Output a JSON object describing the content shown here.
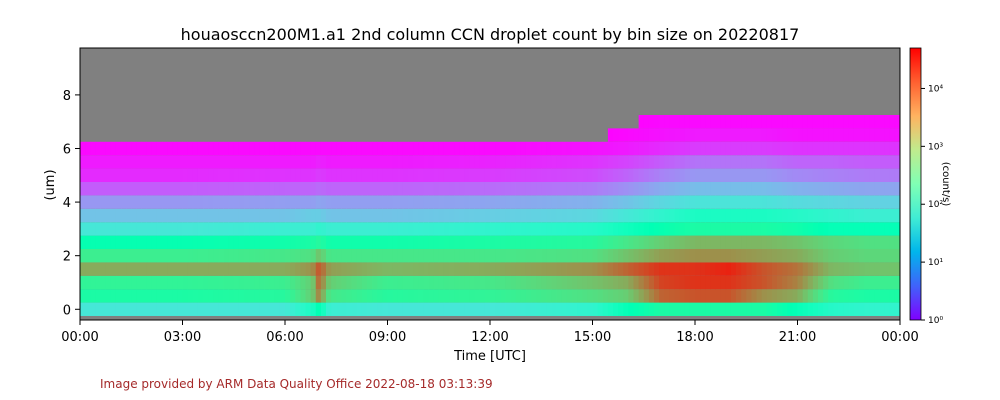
{
  "footer": "Image provided by ARM Data Quality Office 2022-08-18 03:13:39",
  "colors": {
    "background": "#808080",
    "footer": "#a52a2a",
    "colormap": "rainbow"
  },
  "chart_data": {
    "type": "heatmap",
    "title": "houaosccn200M1.a1 2nd column CCN droplet count by bin size on 20220817",
    "xlabel": "Time [UTC]",
    "ylabel": "(um)",
    "colorbar_label": "(count/s)",
    "color_scale": "log",
    "clim": [
      1,
      50000
    ],
    "xlim": [
      "00:00",
      "24:00"
    ],
    "ylim": [
      -0.4,
      9.75
    ],
    "x_ticks": [
      "00:00",
      "03:00",
      "06:00",
      "09:00",
      "12:00",
      "15:00",
      "18:00",
      "21:00",
      "00:00"
    ],
    "y_ticks": [
      0,
      2,
      4,
      6,
      8
    ],
    "colorbar_ticks": [
      {
        "exp": 0,
        "label": "10⁰"
      },
      {
        "exp": 1,
        "label": "10¹"
      },
      {
        "exp": 2,
        "label": "10²"
      },
      {
        "exp": 3,
        "label": "10³"
      },
      {
        "exp": 4,
        "label": "10⁴"
      }
    ],
    "bin_centers_um": [
      0,
      0.5,
      1.0,
      1.5,
      2.0,
      2.5,
      3.0,
      3.5,
      4.0,
      4.5,
      5.0,
      5.5,
      6.0,
      6.5,
      7.0,
      7.5,
      8.0,
      8.5
    ],
    "time_nodes_hr": [
      0,
      3,
      6,
      6.8,
      7.0,
      7.3,
      9,
      12,
      15,
      16,
      17,
      18,
      19,
      20,
      21,
      22,
      23,
      24
    ],
    "log10_counts": [
      [
        1.7,
        1.7,
        1.7,
        2.1,
        2.4,
        1.8,
        1.7,
        1.7,
        1.9,
        2.3,
        2.6,
        2.6,
        2.6,
        2.6,
        2.3,
        2.0,
        1.9,
        1.9
      ],
      [
        2.6,
        2.6,
        2.7,
        3.3,
        3.9,
        3.0,
        2.7,
        2.8,
        3.1,
        3.3,
        4.1,
        4.2,
        4.2,
        3.8,
        3.6,
        2.7,
        2.6,
        2.6
      ],
      [
        2.8,
        2.8,
        2.9,
        3.3,
        4.1,
        3.3,
        2.9,
        3.0,
        3.4,
        3.6,
        4.3,
        4.4,
        4.4,
        4.2,
        3.9,
        3.1,
        2.9,
        2.9
      ],
      [
        3.6,
        3.6,
        3.6,
        3.8,
        4.2,
        3.7,
        3.5,
        3.6,
        3.8,
        4.1,
        4.4,
        4.4,
        4.5,
        4.2,
        4.0,
        3.5,
        3.4,
        3.4
      ],
      [
        2.9,
        2.9,
        3.0,
        3.1,
        3.4,
        3.0,
        3.0,
        3.0,
        3.1,
        3.4,
        3.7,
        3.8,
        3.8,
        3.7,
        3.6,
        3.3,
        3.2,
        3.2
      ],
      [
        2.4,
        2.4,
        2.5,
        2.6,
        2.7,
        2.5,
        2.5,
        2.6,
        2.7,
        3.0,
        3.3,
        3.5,
        3.5,
        3.5,
        3.4,
        3.2,
        3.1,
        3.1
      ],
      [
        1.7,
        1.7,
        1.8,
        1.8,
        1.9,
        1.8,
        1.8,
        1.9,
        2.0,
        2.2,
        2.4,
        2.6,
        2.6,
        2.6,
        2.5,
        2.3,
        2.3,
        2.3
      ],
      [
        1.3,
        1.3,
        1.3,
        1.4,
        1.4,
        1.3,
        1.3,
        1.4,
        1.5,
        1.7,
        1.9,
        2.1,
        2.1,
        2.1,
        2.0,
        1.9,
        1.8,
        1.8
      ],
      [
        0.95,
        0.95,
        1.0,
        1.0,
        1.05,
        1.0,
        1.0,
        1.05,
        1.15,
        1.3,
        1.5,
        1.65,
        1.65,
        1.65,
        1.55,
        1.5,
        1.45,
        1.45
      ],
      [
        0.55,
        0.55,
        0.6,
        0.6,
        0.65,
        0.6,
        0.6,
        0.65,
        0.75,
        0.9,
        1.1,
        1.25,
        1.25,
        1.25,
        1.15,
        1.1,
        1.05,
        1.05
      ],
      [
        0.25,
        0.25,
        0.3,
        0.3,
        0.35,
        0.3,
        0.3,
        0.35,
        0.45,
        0.6,
        0.8,
        0.95,
        0.95,
        0.95,
        0.85,
        0.8,
        0.75,
        0.75
      ],
      [
        0.15,
        0.15,
        0.15,
        0.15,
        0.2,
        0.15,
        0.15,
        0.2,
        0.3,
        0.4,
        0.55,
        0.7,
        0.7,
        0.7,
        0.6,
        0.6,
        0.55,
        0.55
      ],
      [
        0.05,
        0.05,
        0.05,
        0.05,
        0.05,
        0.05,
        0.05,
        0.05,
        0.1,
        0.15,
        0.25,
        0.35,
        0.35,
        0.35,
        0.3,
        0.3,
        0.3,
        0.3
      ],
      [
        0,
        0,
        0,
        0,
        0,
        0,
        0,
        0,
        0,
        0.05,
        0.1,
        0.15,
        0.15,
        0.15,
        0.1,
        0.1,
        0.1,
        0.1
      ],
      [
        0,
        0,
        0,
        0,
        0,
        0,
        0,
        0,
        0,
        0,
        0.05,
        0.05,
        0.05,
        0.05,
        0.05,
        0.05,
        0.05,
        0.05
      ],
      [
        0,
        0,
        0,
        0,
        0,
        0,
        0,
        0,
        0,
        0,
        0,
        0,
        0,
        0,
        0,
        0,
        0,
        0
      ],
      [
        0,
        0,
        0,
        0,
        0,
        0,
        0,
        0,
        0,
        0,
        0,
        0,
        0,
        0,
        0,
        0,
        0,
        0
      ],
      [
        0,
        0,
        0,
        0,
        0,
        0,
        0,
        0,
        0,
        0,
        0,
        0,
        0,
        0,
        0,
        0,
        0,
        0
      ]
    ]
  }
}
